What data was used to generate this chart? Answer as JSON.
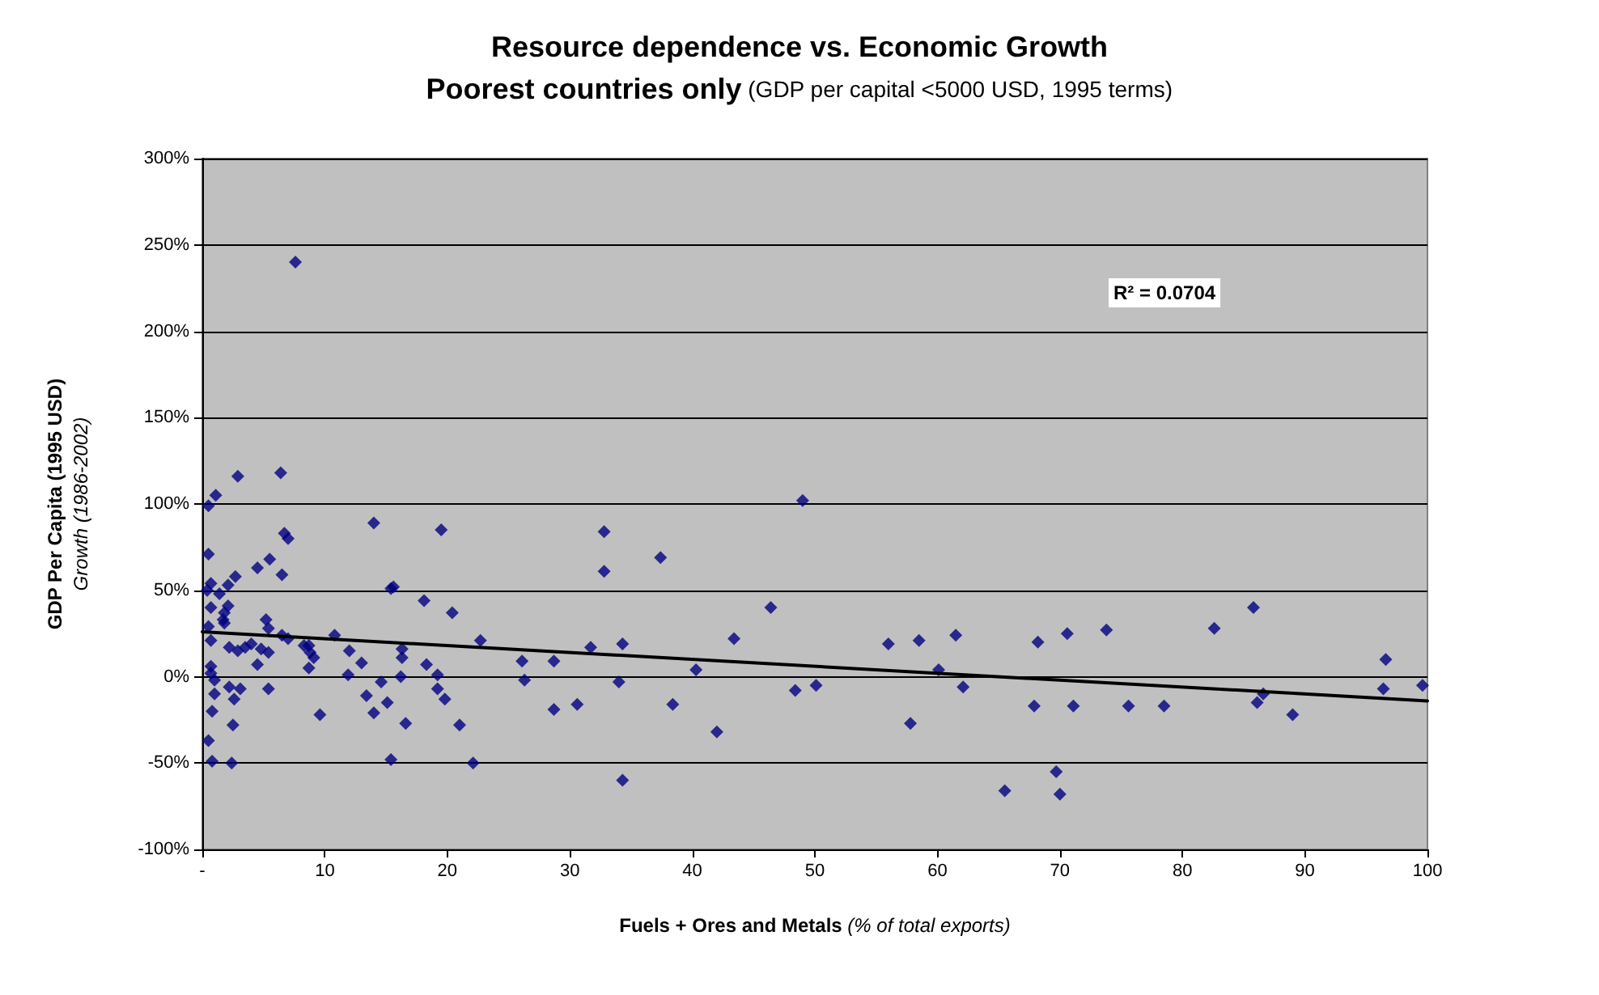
{
  "chart_data": {
    "type": "scatter",
    "title": "Resource dependence vs. Economic Growth",
    "subtitle": "Poorest countries only (GDP per capital <5000 USD, 1995 terms)",
    "xlabel": "Fuels + Ores and Metals (% of total exports)",
    "ylabel": "GDP Per Capita (1995 USD)\nGrowth (1986-2002)",
    "annotations": [
      "R² = 0.0704"
    ],
    "xlim": [
      0,
      100
    ],
    "xticks": [
      {
        "value": 0,
        "label": "-"
      },
      10,
      20,
      30,
      40,
      50,
      60,
      70,
      80,
      90,
      100
    ],
    "ylim": [
      -100,
      300
    ],
    "yticks": [
      {
        "value": -100,
        "label": "-100%"
      },
      {
        "value": -50,
        "label": "-50%"
      },
      {
        "value": 0,
        "label": "0%"
      },
      {
        "value": 50,
        "label": "50%"
      },
      {
        "value": 100,
        "label": "100%"
      },
      {
        "value": 150,
        "label": "150%"
      },
      {
        "value": 200,
        "label": "200%"
      },
      {
        "value": 250,
        "label": "250%"
      },
      {
        "value": 300,
        "label": "300%"
      }
    ],
    "grid": "y",
    "series": [
      {
        "marker": "diamond",
        "color": "#000080",
        "x": [
          7.6,
          0.5,
          1.1,
          2.9,
          6.4,
          6.7,
          7.0,
          0.5,
          4.5,
          5.5,
          6.5,
          2.7,
          2.1,
          0.7,
          0.4,
          1.4,
          0.7,
          2.1,
          1.8,
          1.7,
          1.8,
          0.5,
          0.7,
          5.2,
          5.4,
          6.5,
          7.0,
          2.2,
          2.9,
          3.5,
          4.0,
          4.8,
          5.4,
          4.5,
          0.7,
          0.7,
          1.0,
          1.0,
          2.2,
          3.1,
          5.4,
          0.8,
          2.6,
          2.5,
          0.5,
          0.8,
          2.4,
          8.3,
          8.7,
          8.8,
          9.1,
          8.7,
          9.6,
          10.8,
          12.0,
          13.0,
          11.9,
          14.0,
          14.6,
          15.1,
          13.4,
          14.0,
          15.4,
          15.4,
          15.6,
          19.5,
          18.1,
          20.4,
          32.8,
          32.8,
          37.4,
          22.7,
          16.3,
          16.3,
          18.3,
          16.2,
          19.2,
          19.2,
          19.8,
          16.6,
          21.0,
          26.1,
          26.3,
          28.7,
          28.7,
          30.6,
          31.7,
          34.3,
          34.0,
          38.4,
          40.3,
          22.1,
          34.3,
          49.0,
          46.4,
          43.4,
          56.0,
          58.5,
          61.5,
          68.2,
          70.6,
          60.1,
          62.1,
          48.4,
          50.1,
          42.0,
          57.8,
          67.9,
          65.5,
          69.7,
          70.0,
          73.8,
          82.6,
          85.8,
          96.6,
          96.4,
          99.6,
          71.1,
          75.6,
          78.5,
          86.1,
          86.6,
          89.0
        ],
        "values": [
          240,
          99,
          105,
          116,
          118,
          83,
          80,
          71,
          63,
          68,
          59,
          58,
          53,
          54,
          50,
          48,
          40,
          41,
          37,
          33,
          31,
          29,
          21,
          33,
          28,
          24,
          22,
          17,
          15,
          17,
          19,
          16,
          14,
          7,
          6,
          2,
          -2,
          -10,
          -6,
          -7,
          -7,
          -20,
          -13,
          -28,
          -37,
          -49,
          -50,
          18,
          18,
          14,
          11,
          5,
          -22,
          24,
          15,
          8,
          1,
          89,
          -3,
          -15,
          -11,
          -21,
          51,
          -48,
          52,
          85,
          44,
          37,
          84,
          61,
          69,
          21,
          16,
          11,
          7,
          0,
          1,
          -7,
          -13,
          -27,
          -28,
          9,
          -2,
          9,
          -19,
          -16,
          17,
          19,
          -3,
          -16,
          4,
          -50,
          -60,
          102,
          40,
          22,
          19,
          21,
          24,
          20,
          25,
          4,
          -6,
          -8,
          -5,
          -32,
          -27,
          -17,
          -66,
          -55,
          -68,
          27,
          28,
          40,
          10,
          -7,
          -5,
          -17,
          -17,
          -17,
          -15,
          -10,
          -22
        ]
      },
      {
        "type": "line",
        "marker": "none",
        "color": "#000000",
        "line_style": "solid",
        "x": [
          0,
          100
        ],
        "values": [
          26,
          -14
        ]
      }
    ]
  }
}
